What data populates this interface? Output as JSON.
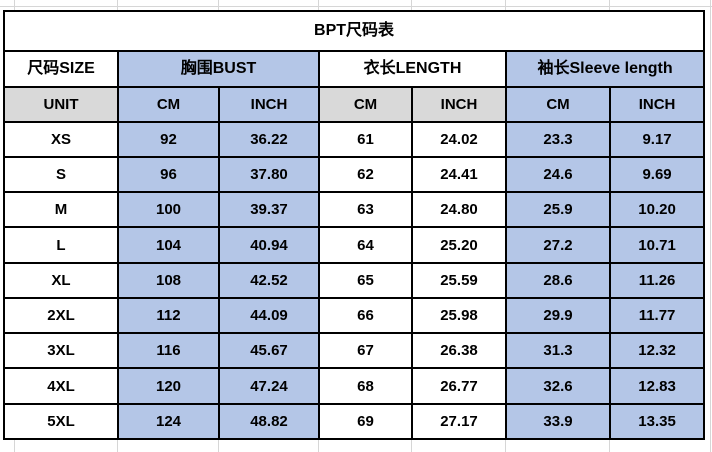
{
  "colors": {
    "group_blue": "#b4c6e7",
    "unit_gray": "#d9d9d9",
    "cell_border": "#000000",
    "spreadsheet_gridline": "#d6d6d6",
    "text": "#000000",
    "background": "#ffffff"
  },
  "table": {
    "title": "BPT尺码表",
    "column_groups": [
      {
        "label": "尺码SIZE",
        "span": 1,
        "tone": "white"
      },
      {
        "label": "胸围BUST",
        "span": 2,
        "tone": "blue"
      },
      {
        "label": "衣长LENGTH",
        "span": 2,
        "tone": "white"
      },
      {
        "label": "袖长Sleeve length",
        "span": 2,
        "tone": "blue"
      }
    ],
    "unit_row": [
      "UNIT",
      "CM",
      "INCH",
      "CM",
      "INCH",
      "CM",
      "INCH"
    ],
    "unit_tones": [
      "gray",
      "blue",
      "blue",
      "gray",
      "gray",
      "blue",
      "blue"
    ],
    "data_tones": [
      "white",
      "blue",
      "blue",
      "white",
      "white",
      "blue",
      "blue"
    ],
    "rows": [
      [
        "XS",
        "92",
        "36.22",
        "61",
        "24.02",
        "23.3",
        "9.17"
      ],
      [
        "S",
        "96",
        "37.80",
        "62",
        "24.41",
        "24.6",
        "9.69"
      ],
      [
        "M",
        "100",
        "39.37",
        "63",
        "24.80",
        "25.9",
        "10.20"
      ],
      [
        "L",
        "104",
        "40.94",
        "64",
        "25.20",
        "27.2",
        "10.71"
      ],
      [
        "XL",
        "108",
        "42.52",
        "65",
        "25.59",
        "28.6",
        "11.26"
      ],
      [
        "2XL",
        "112",
        "44.09",
        "66",
        "25.98",
        "29.9",
        "11.77"
      ],
      [
        "3XL",
        "116",
        "45.67",
        "67",
        "26.38",
        "31.3",
        "12.32"
      ],
      [
        "4XL",
        "120",
        "47.24",
        "68",
        "26.77",
        "32.6",
        "12.83"
      ],
      [
        "5XL",
        "124",
        "48.82",
        "69",
        "27.17",
        "33.9",
        "13.35"
      ]
    ]
  }
}
